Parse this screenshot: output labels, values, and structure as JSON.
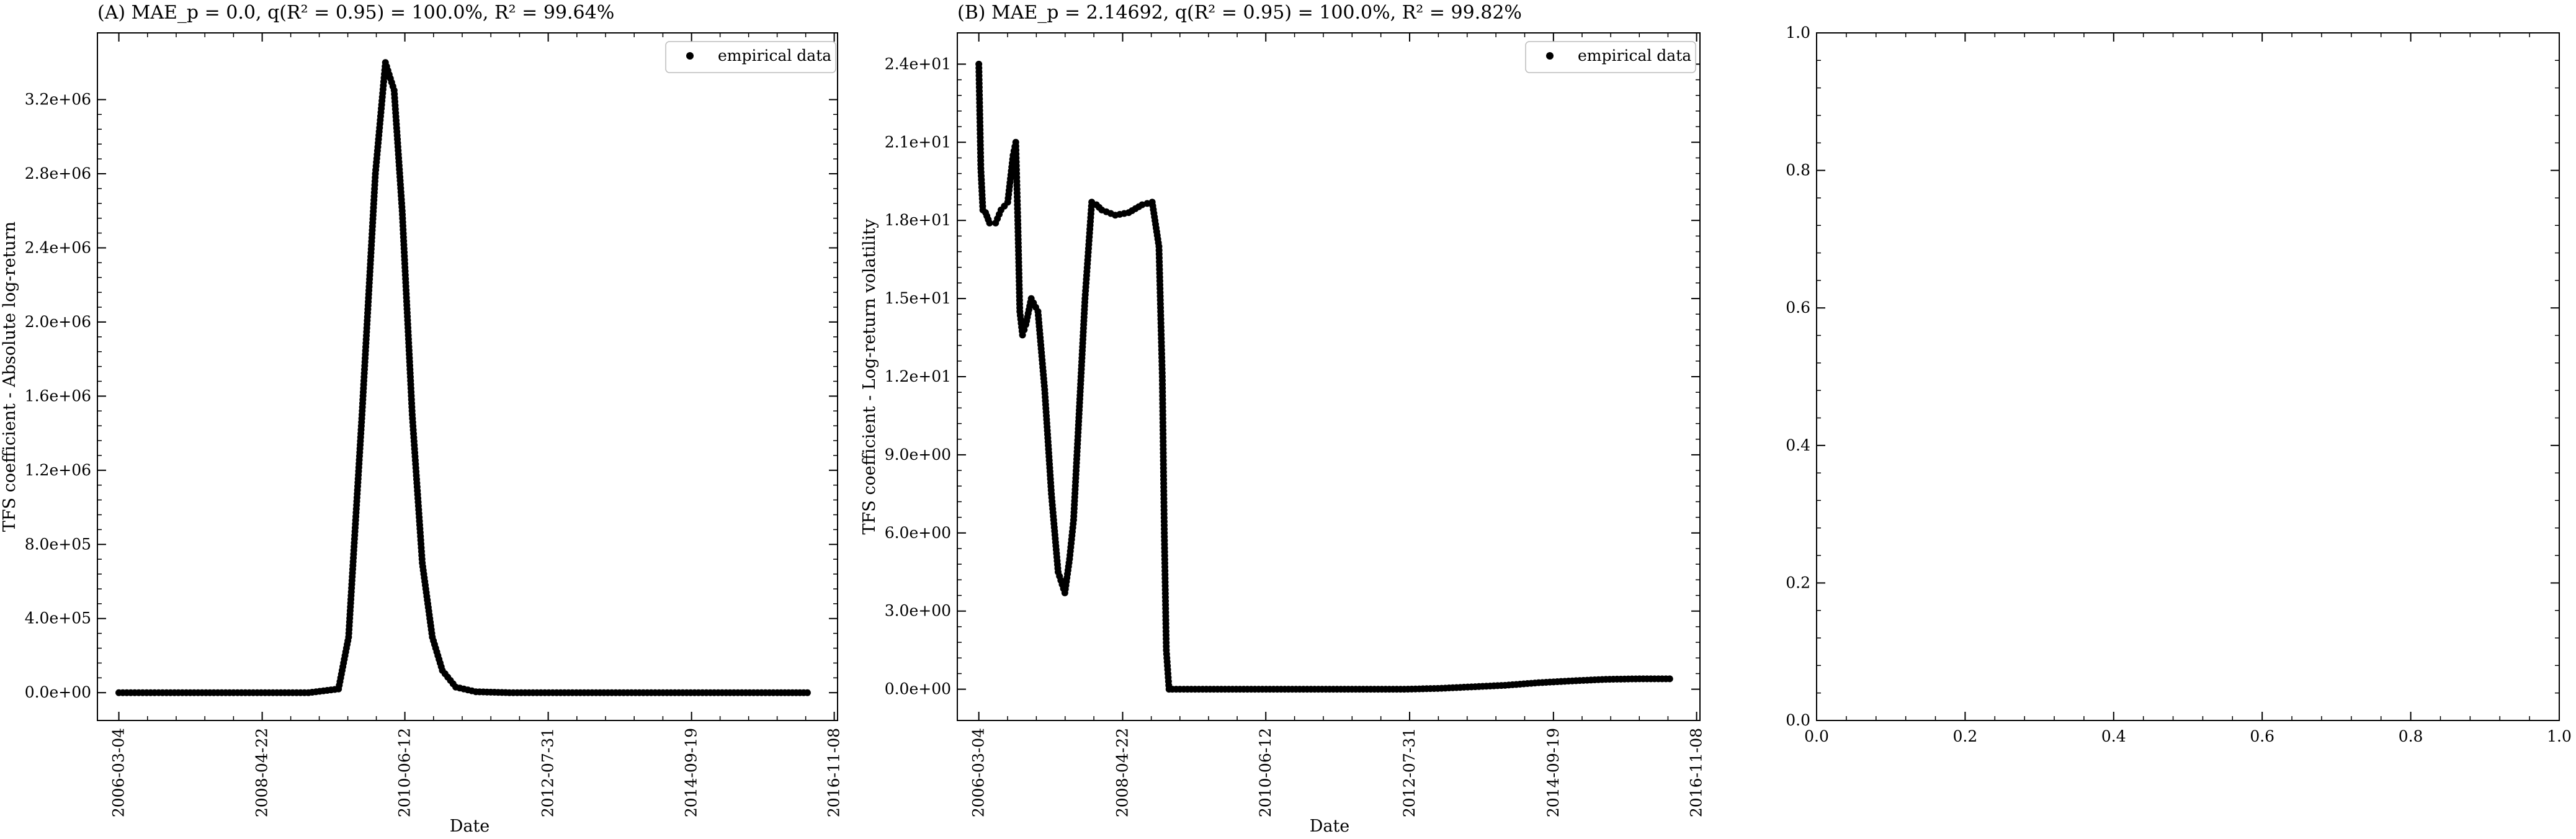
{
  "chart_data": [
    {
      "id": "A",
      "type": "scatter",
      "title": "(A) MAE_p = 0.0, q(R² = 0.95) = 100.0%, R² = 99.64%",
      "xlabel": "Date",
      "ylabel": "TFS coefficient - Absolute log-return",
      "legend": {
        "label": "empirical data",
        "position": "top-right"
      },
      "xlim": [
        2005.85,
        2016.9
      ],
      "ylim": [
        -150000,
        3560000
      ],
      "x_ticks": [
        {
          "value": 2006.17,
          "label": "2006-03-04"
        },
        {
          "value": 2008.31,
          "label": "2008-04-22"
        },
        {
          "value": 2010.44,
          "label": "2010-06-12"
        },
        {
          "value": 2012.58,
          "label": "2012-07-31"
        },
        {
          "value": 2014.72,
          "label": "2014-09-19"
        },
        {
          "value": 2016.85,
          "label": "2016-11-08"
        }
      ],
      "y_ticks": [
        {
          "value": 0,
          "label": "0.0e+00"
        },
        {
          "value": 400000,
          "label": "4.0e+05"
        },
        {
          "value": 800000,
          "label": "8.0e+05"
        },
        {
          "value": 1200000,
          "label": "1.2e+06"
        },
        {
          "value": 1600000,
          "label": "1.6e+06"
        },
        {
          "value": 2000000,
          "label": "2.0e+06"
        },
        {
          "value": 2400000,
          "label": "2.4e+06"
        },
        {
          "value": 2800000,
          "label": "2.8e+06"
        },
        {
          "value": 3200000,
          "label": "3.2e+06"
        }
      ],
      "series": [
        {
          "name": "empirical data",
          "x": [
            2006.17,
            2007.0,
            2008.0,
            2009.0,
            2009.45,
            2009.6,
            2009.8,
            2010.0,
            2010.15,
            2010.28,
            2010.4,
            2010.55,
            2010.7,
            2010.85,
            2011.0,
            2011.2,
            2011.5,
            2012.0,
            2013.0,
            2014.0,
            2015.0,
            2016.0,
            2016.45
          ],
          "y": [
            0,
            0,
            0,
            0,
            20000,
            300000,
            1500000,
            2800000,
            3400000,
            3250000,
            2600000,
            1500000,
            700000,
            300000,
            120000,
            30000,
            5000,
            0,
            0,
            0,
            0,
            0,
            0
          ]
        }
      ]
    },
    {
      "id": "B",
      "type": "scatter",
      "title": "(B) MAE_p = 2.14692, q(R² = 0.95) = 100.0%, R² = 99.82%",
      "xlabel": "Date",
      "ylabel": "TFS coefficient - Log-return volatility",
      "legend": {
        "label": "empirical data",
        "position": "top-right"
      },
      "xlim": [
        2005.85,
        2016.9
      ],
      "ylim": [
        -1.2,
        25.2
      ],
      "x_ticks": [
        {
          "value": 2006.17,
          "label": "2006-03-04"
        },
        {
          "value": 2008.31,
          "label": "2008-04-22"
        },
        {
          "value": 2010.44,
          "label": "2010-06-12"
        },
        {
          "value": 2012.58,
          "label": "2012-07-31"
        },
        {
          "value": 2014.72,
          "label": "2014-09-19"
        },
        {
          "value": 2016.85,
          "label": "2016-11-08"
        }
      ],
      "y_ticks": [
        {
          "value": 0,
          "label": "0.0e+00"
        },
        {
          "value": 3,
          "label": "3.0e+00"
        },
        {
          "value": 6,
          "label": "6.0e+00"
        },
        {
          "value": 9,
          "label": "9.0e+00"
        },
        {
          "value": 12,
          "label": "1.2e+01"
        },
        {
          "value": 15,
          "label": "1.5e+01"
        },
        {
          "value": 18,
          "label": "1.8e+01"
        },
        {
          "value": 21,
          "label": "2.1e+01"
        },
        {
          "value": 24,
          "label": "2.4e+01"
        }
      ],
      "series": [
        {
          "name": "empirical data",
          "x": [
            2006.17,
            2006.2,
            2006.23,
            2006.27,
            2006.33,
            2006.42,
            2006.5,
            2006.6,
            2006.68,
            2006.72,
            2006.75,
            2006.78,
            2006.82,
            2006.87,
            2006.95,
            2007.05,
            2007.15,
            2007.25,
            2007.35,
            2007.45,
            2007.52,
            2007.58,
            2007.65,
            2007.75,
            2007.85,
            2007.92,
            2008.0,
            2008.2,
            2008.4,
            2008.6,
            2008.75,
            2008.85,
            2008.9,
            2008.93,
            2008.96,
            2009.0,
            2009.05,
            2009.5,
            2010.0,
            2010.5,
            2011.0,
            2011.5,
            2012.0,
            2012.5,
            2013.0,
            2013.5,
            2014.0,
            2014.5,
            2015.0,
            2015.5,
            2016.0,
            2016.45
          ],
          "y": [
            24.0,
            20.0,
            18.4,
            18.3,
            17.9,
            17.9,
            18.4,
            18.7,
            20.5,
            21.0,
            18.0,
            14.5,
            13.6,
            14.0,
            15.0,
            14.5,
            11.5,
            7.5,
            4.5,
            3.7,
            5.0,
            6.5,
            10.0,
            15.0,
            18.7,
            18.6,
            18.4,
            18.2,
            18.3,
            18.6,
            18.7,
            17.0,
            12.0,
            6.0,
            1.5,
            0.0,
            0.0,
            0.0,
            0.0,
            0.0,
            0.0,
            0.0,
            0.0,
            0.0,
            0.03,
            0.09,
            0.15,
            0.25,
            0.32,
            0.38,
            0.4,
            0.4
          ]
        }
      ]
    },
    {
      "id": "C",
      "type": "scatter",
      "title": "",
      "xlabel": "",
      "ylabel": "",
      "xlim": [
        0,
        1
      ],
      "ylim": [
        0,
        1
      ],
      "x_ticks": [
        {
          "value": 0.0,
          "label": "0.0"
        },
        {
          "value": 0.2,
          "label": "0.2"
        },
        {
          "value": 0.4,
          "label": "0.4"
        },
        {
          "value": 0.6,
          "label": "0.6"
        },
        {
          "value": 0.8,
          "label": "0.8"
        },
        {
          "value": 1.0,
          "label": "1.0"
        }
      ],
      "y_ticks": [
        {
          "value": 0.0,
          "label": "0.0"
        },
        {
          "value": 0.2,
          "label": "0.2"
        },
        {
          "value": 0.4,
          "label": "0.4"
        },
        {
          "value": 0.6,
          "label": "0.6"
        },
        {
          "value": 0.8,
          "label": "0.8"
        },
        {
          "value": 1.0,
          "label": "1.0"
        }
      ],
      "series": []
    }
  ]
}
